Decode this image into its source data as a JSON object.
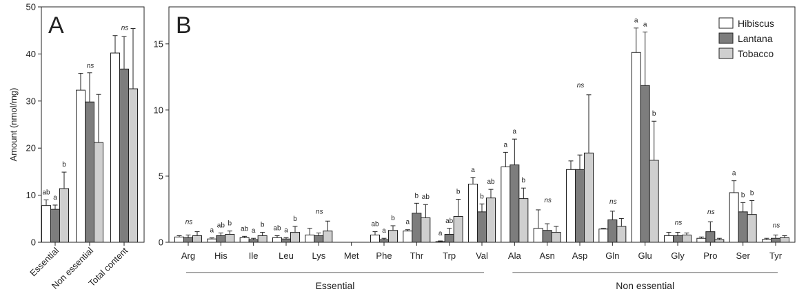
{
  "colors": {
    "Hibiscus": "#ffffff",
    "Lantana": "#7d7d7d",
    "Tobacco": "#cfcfcf",
    "stroke": "#222222"
  },
  "chart_data": [
    {
      "type": "bar",
      "panel": "A",
      "ylabel": "Amount (nmol/mg)",
      "ylim": [
        0,
        50
      ],
      "yticks": [
        0,
        10,
        20,
        30,
        40,
        50
      ],
      "categories": [
        "Essential",
        "Non essential",
        "Total content"
      ],
      "series": [
        {
          "name": "Hibiscus",
          "values": [
            7.8,
            32.3,
            40.2
          ],
          "errors": [
            1.2,
            3.6,
            3.7
          ]
        },
        {
          "name": "Lantana",
          "values": [
            7.0,
            29.8,
            36.8
          ],
          "errors": [
            0.9,
            6.2,
            6.9
          ]
        },
        {
          "name": "Tobacco",
          "values": [
            11.4,
            21.2,
            32.6
          ],
          "errors": [
            3.5,
            10.2,
            12.8
          ]
        }
      ],
      "annotations": [
        [
          "ab",
          "a",
          "b"
        ],
        [
          "ns",
          "",
          ""
        ],
        [
          "ns",
          "",
          ""
        ]
      ]
    },
    {
      "type": "bar",
      "panel": "B",
      "ylim": [
        0,
        17.8
      ],
      "yticks": [
        0,
        5,
        10,
        15
      ],
      "categories": [
        "Arg",
        "His",
        "Ile",
        "Leu",
        "Lys",
        "Met",
        "Phe",
        "Thr",
        "Trp",
        "Val",
        "Ala",
        "Asn",
        "Asp",
        "Gln",
        "Glu",
        "Gly",
        "Pro",
        "Ser",
        "Tyr"
      ],
      "groups": [
        {
          "label": "Essential",
          "from": 0,
          "to": 9
        },
        {
          "label": "Non essential",
          "from": 10,
          "to": 18
        }
      ],
      "legend": {
        "position": "top-right",
        "entries": [
          "Hibiscus",
          "Lantana",
          "Tobacco"
        ]
      },
      "series": [
        {
          "name": "Hibiscus",
          "values": [
            0.4,
            0.25,
            0.35,
            0.35,
            0.55,
            0.0,
            0.55,
            0.85,
            0.05,
            4.4,
            5.7,
            1.05,
            5.5,
            1.0,
            14.35,
            0.5,
            0.3,
            3.75,
            0.2
          ],
          "errors": [
            0.1,
            0.08,
            0.1,
            0.15,
            0.5,
            0.0,
            0.25,
            0.1,
            0.05,
            0.5,
            1.1,
            1.4,
            0.65,
            0.05,
            1.85,
            0.25,
            0.1,
            0.9,
            0.1
          ]
        },
        {
          "name": "Lantana",
          "values": [
            0.35,
            0.5,
            0.2,
            0.25,
            0.5,
            0.0,
            0.2,
            2.2,
            0.6,
            2.3,
            5.85,
            0.9,
            5.5,
            1.7,
            11.85,
            0.5,
            0.8,
            2.3,
            0.3
          ],
          "errors": [
            0.2,
            0.2,
            0.1,
            0.1,
            0.2,
            0.0,
            0.1,
            0.75,
            0.45,
            0.6,
            1.95,
            0.5,
            1.1,
            0.65,
            4.05,
            0.25,
            0.75,
            0.7,
            0.25
          ]
        },
        {
          "name": "Tobacco",
          "values": [
            0.5,
            0.6,
            0.5,
            0.75,
            0.85,
            0.0,
            0.9,
            1.85,
            1.95,
            3.35,
            3.3,
            0.75,
            6.75,
            1.2,
            6.2,
            0.55,
            0.2,
            2.1,
            0.35
          ],
          "errors": [
            0.3,
            0.25,
            0.25,
            0.45,
            0.75,
            0.0,
            0.35,
            1.0,
            1.3,
            0.65,
            0.8,
            0.45,
            4.4,
            0.6,
            2.95,
            0.15,
            0.1,
            1.05,
            0.15
          ]
        }
      ],
      "annotations": [
        [
          "ns",
          "",
          ""
        ],
        [
          "a",
          "ab",
          "b"
        ],
        [
          "ab",
          "a",
          "b"
        ],
        [
          "ab",
          "a",
          "b"
        ],
        [
          "ns",
          "",
          ""
        ],
        [
          "",
          "",
          ""
        ],
        [
          "ab",
          "a",
          "b"
        ],
        [
          "a",
          "b",
          "ab"
        ],
        [
          "a",
          "ab",
          "b"
        ],
        [
          "a",
          "b",
          "ab"
        ],
        [
          "a",
          "a",
          "b"
        ],
        [
          "ns",
          "",
          ""
        ],
        [
          "ns",
          "",
          ""
        ],
        [
          "ns",
          "",
          ""
        ],
        [
          "a",
          "a",
          "b"
        ],
        [
          "ns",
          "",
          ""
        ],
        [
          "ns",
          "",
          ""
        ],
        [
          "a",
          "b",
          "b"
        ],
        [
          "ns",
          "",
          ""
        ]
      ]
    }
  ]
}
